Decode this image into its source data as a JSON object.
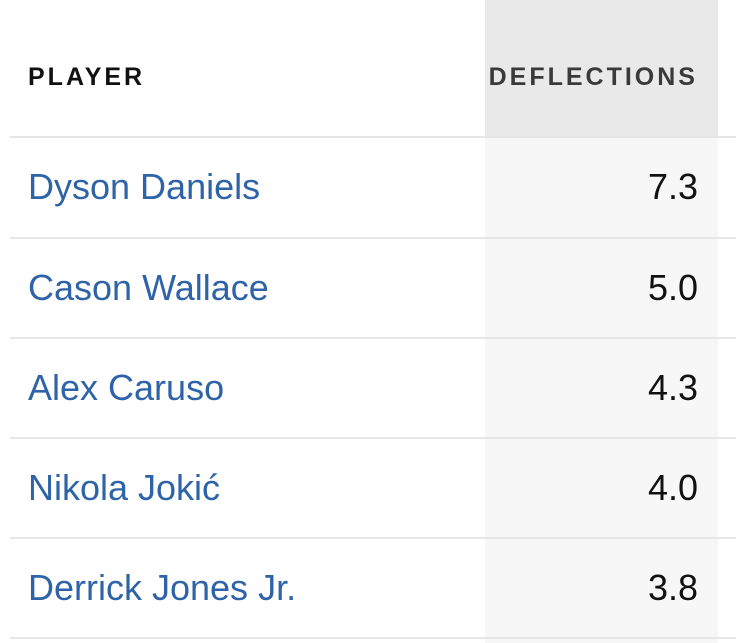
{
  "table": {
    "headers": {
      "player": "PLAYER",
      "deflections": "DEFLECTIONS"
    },
    "rows": [
      {
        "player": "Dyson Daniels",
        "deflections": "7.3"
      },
      {
        "player": "Cason Wallace",
        "deflections": "5.0"
      },
      {
        "player": "Alex Caruso",
        "deflections": "4.3"
      },
      {
        "player": "Nikola Jokić",
        "deflections": "4.0"
      },
      {
        "player": "Derrick Jones Jr.",
        "deflections": "3.8"
      }
    ]
  },
  "colors": {
    "link": "#2f63a8",
    "text": "#111111",
    "sorted_header_bg": "#e9e9e9",
    "sorted_column_bg": "#f7f7f7",
    "divider": "#e6e6e6"
  }
}
